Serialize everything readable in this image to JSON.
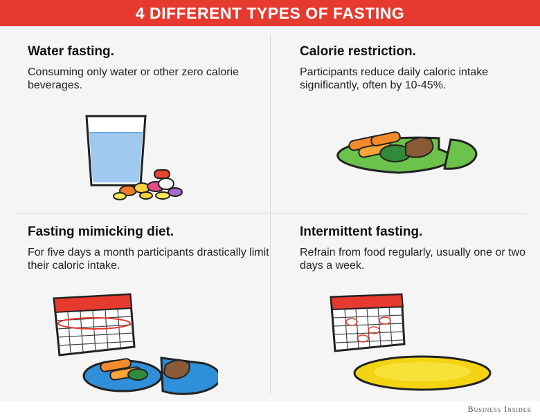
{
  "header": {
    "title": "4 DIFFERENT TYPES OF FASTING"
  },
  "panels": [
    {
      "title": "Water fasting.",
      "description": "Consuming only water or other zero calorie beverages."
    },
    {
      "title": "Calorie restriction.",
      "description": "Participants reduce daily caloric intake significantly, often by 10-45%."
    },
    {
      "title": "Fasting mimicking diet.",
      "description": "For five days a month participants drastically limit their caloric intake."
    },
    {
      "title": "Intermittent fasting.",
      "description": "Refrain from food regularly, usually one or two days a week."
    }
  ],
  "footer": {
    "brand": "Business Insider"
  },
  "colors": {
    "header_red": "#e63a2e",
    "plate_green": "#6cc24a",
    "plate_blue": "#2f8fd8",
    "plate_yellow": "#f3d414",
    "water_blue": "#9fc9ef"
  },
  "icons": [
    "water-glass-icon",
    "pills-icon",
    "green-plate-icon",
    "calendar-icon",
    "blue-plate-icon",
    "yellow-plate-icon"
  ]
}
